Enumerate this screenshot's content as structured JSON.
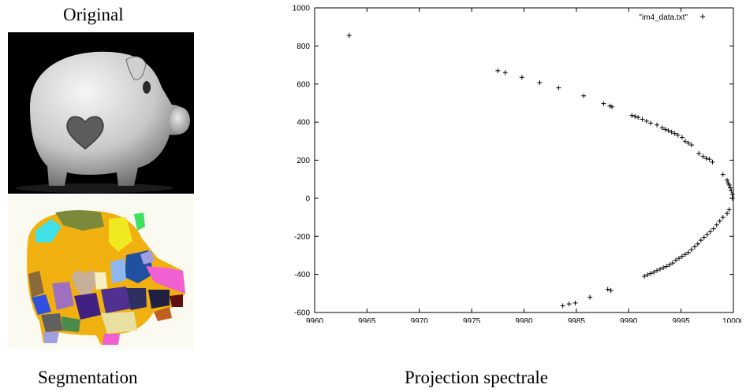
{
  "captions": {
    "original": "Original",
    "segmentation": "Segmentation",
    "projection": "Projection spectrale"
  },
  "chart_data": {
    "type": "scatter",
    "title": "",
    "xlabel": "",
    "ylabel": "",
    "xlim": [
      9960,
      10000
    ],
    "ylim": [
      -600,
      1000
    ],
    "xticks": [
      9960,
      9965,
      9970,
      9975,
      9980,
      9985,
      9990,
      9995,
      10000
    ],
    "yticks": [
      -600,
      -400,
      -200,
      0,
      200,
      400,
      600,
      800,
      1000
    ],
    "grid": false,
    "legend_position": "top-right",
    "marker": "+",
    "series": [
      {
        "name": "\"im4_data.txt\"",
        "x": [
          9963.3,
          9977.5,
          9978.2,
          9979.8,
          9981.5,
          9983.3,
          9985.7,
          9987.6,
          9988.2,
          9988.4,
          9990.3,
          9990.6,
          9990.9,
          9991.3,
          9991.7,
          9992.1,
          9992.7,
          9993.2,
          9993.5,
          9993.8,
          9994.1,
          9994.4,
          9994.7,
          9995.1,
          9995.4,
          9995.7,
          9996.0,
          9996.7,
          9997.1,
          9997.4,
          9997.7,
          9998.0,
          9999.0,
          9999.4,
          9999.5,
          9999.6,
          9999.7,
          9999.8,
          9999.9,
          9999.9,
          9999.6,
          9999.4,
          9999.0,
          9998.7,
          9998.4,
          9998.1,
          9997.8,
          9997.5,
          9997.2,
          9996.9,
          9996.6,
          9996.3,
          9996.0,
          9995.7,
          9995.4,
          9995.1,
          9994.8,
          9994.5,
          9994.2,
          9993.9,
          9993.6,
          9993.3,
          9993.0,
          9992.7,
          9992.4,
          9992.1,
          9991.8,
          9991.5,
          9988.3,
          9988.0,
          9986.3,
          9984.9,
          9984.3,
          9983.7
        ],
        "y": [
          855,
          670,
          660,
          635,
          608,
          580,
          538,
          497,
          485,
          480,
          435,
          430,
          425,
          415,
          405,
          395,
          385,
          370,
          362,
          355,
          348,
          340,
          332,
          320,
          300,
          290,
          280,
          235,
          220,
          210,
          205,
          190,
          125,
          95,
          80,
          70,
          55,
          40,
          20,
          0,
          -60,
          -80,
          -100,
          -120,
          -140,
          -160,
          -175,
          -190,
          -205,
          -220,
          -240,
          -255,
          -270,
          -285,
          -295,
          -305,
          -315,
          -325,
          -340,
          -350,
          -358,
          -365,
          -372,
          -380,
          -388,
          -395,
          -402,
          -410,
          -485,
          -478,
          -520,
          -550,
          -555,
          -565
        ]
      }
    ]
  }
}
